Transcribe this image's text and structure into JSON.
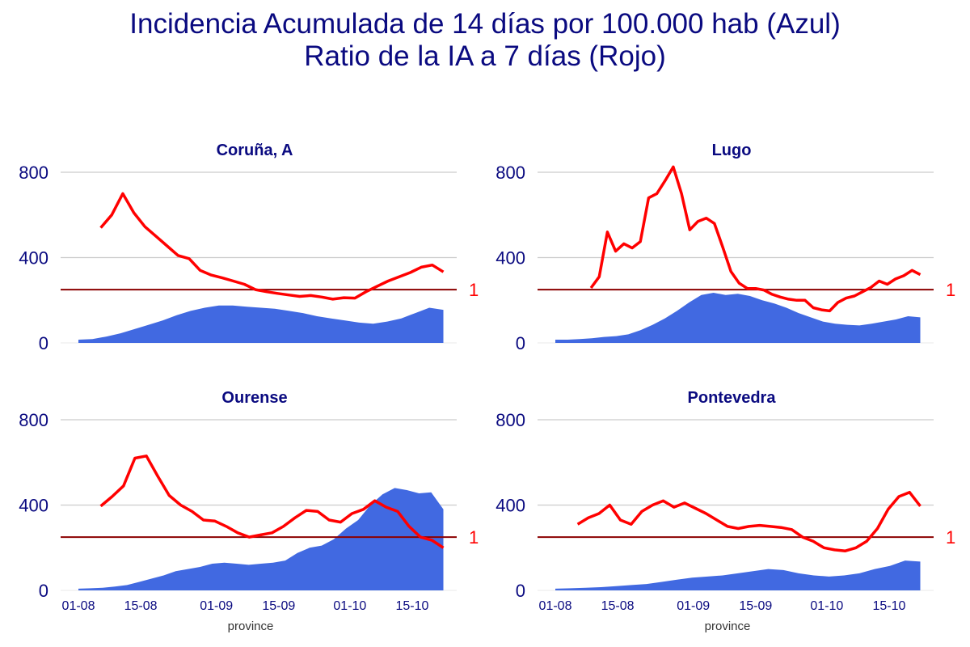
{
  "titles": {
    "line1": "Incidencia Acumulada de 14 días por 100.000 hab (Azul)",
    "line2": "Ratio de la IA a 7 días (Rojo)"
  },
  "colors": {
    "area": "#4169E1",
    "line": "#FF0000",
    "ref": "#8B0000",
    "grid": "#CCCCCC",
    "text": "#0A0A80"
  },
  "chart_data": [
    {
      "type": "area",
      "title": "Coruña, A",
      "xlabel": "",
      "ylim": [
        0,
        800
      ],
      "yticks": [
        0,
        400,
        800
      ],
      "xticks": [
        "01-08",
        "15-08",
        "01-09",
        "15-09",
        "01-10",
        "15-10"
      ],
      "ref_label": "1",
      "ref_value": 250,
      "x_range": [
        "2020-07-28",
        "2020-10-25"
      ],
      "ia14": {
        "x_start": "2020-08-01",
        "x_end": "2020-10-22",
        "values": [
          15,
          18,
          30,
          45,
          65,
          85,
          105,
          130,
          150,
          165,
          175,
          175,
          170,
          165,
          160,
          150,
          140,
          125,
          115,
          105,
          95,
          90,
          100,
          115,
          140,
          165,
          155
        ]
      },
      "ratio": {
        "x_start": "2020-08-06",
        "x_end": "2020-10-22",
        "values": [
          540,
          600,
          700,
          610,
          545,
          500,
          455,
          410,
          395,
          340,
          318,
          305,
          290,
          275,
          250,
          240,
          232,
          225,
          218,
          222,
          215,
          205,
          212,
          210,
          240,
          265,
          290,
          310,
          330,
          355,
          365,
          333
        ]
      }
    },
    {
      "type": "area",
      "title": "Lugo",
      "xlabel": "",
      "ylim": [
        0,
        800
      ],
      "yticks": [
        0,
        400,
        800
      ],
      "xticks": [
        "01-08",
        "15-08",
        "01-09",
        "15-09",
        "01-10",
        "15-10"
      ],
      "ref_label": "1",
      "ref_value": 250,
      "x_range": [
        "2020-07-28",
        "2020-10-25"
      ],
      "ia14": {
        "x_start": "2020-08-01",
        "x_end": "2020-10-22",
        "values": [
          15,
          15,
          18,
          22,
          28,
          32,
          40,
          60,
          85,
          115,
          150,
          190,
          225,
          235,
          225,
          230,
          220,
          200,
          185,
          165,
          140,
          120,
          100,
          90,
          85,
          82,
          90,
          100,
          110,
          125,
          120
        ]
      },
      "ratio": {
        "x_start": "2020-08-09",
        "x_end": "2020-10-22",
        "values": [
          258,
          310,
          520,
          430,
          465,
          445,
          475,
          680,
          700,
          760,
          825,
          700,
          530,
          570,
          585,
          560,
          450,
          335,
          280,
          255,
          255,
          248,
          228,
          215,
          205,
          200,
          200,
          165,
          155,
          150,
          190,
          210,
          220,
          240,
          260,
          290,
          275,
          300,
          315,
          340,
          320
        ]
      }
    },
    {
      "type": "area",
      "title": "Ourense",
      "xlabel": "province",
      "ylim": [
        0,
        800
      ],
      "yticks": [
        0,
        400,
        800
      ],
      "xticks": [
        "01-08",
        "15-08",
        "01-09",
        "15-09",
        "01-10",
        "15-10"
      ],
      "ref_label": "1",
      "ref_value": 250,
      "x_range": [
        "2020-07-28",
        "2020-10-25"
      ],
      "ia14": {
        "x_start": "2020-08-01",
        "x_end": "2020-10-22",
        "values": [
          8,
          10,
          12,
          18,
          25,
          40,
          55,
          70,
          90,
          100,
          110,
          125,
          130,
          125,
          120,
          125,
          130,
          140,
          175,
          200,
          210,
          240,
          290,
          330,
          400,
          450,
          480,
          470,
          455,
          460,
          380
        ]
      },
      "ratio": {
        "x_start": "2020-08-06",
        "x_end": "2020-10-22",
        "values": [
          395,
          440,
          490,
          620,
          630,
          535,
          445,
          400,
          370,
          330,
          325,
          300,
          270,
          250,
          260,
          270,
          300,
          340,
          375,
          370,
          330,
          320,
          360,
          380,
          420,
          390,
          370,
          300,
          250,
          235,
          200
        ]
      }
    },
    {
      "type": "area",
      "title": "Pontevedra",
      "xlabel": "province",
      "ylim": [
        0,
        800
      ],
      "yticks": [
        0,
        400,
        800
      ],
      "xticks": [
        "01-08",
        "15-08",
        "01-09",
        "15-09",
        "01-10",
        "15-10"
      ],
      "ref_label": "1",
      "ref_value": 250,
      "x_range": [
        "2020-07-28",
        "2020-10-25"
      ],
      "ia14": {
        "x_start": "2020-08-01",
        "x_end": "2020-10-22",
        "values": [
          8,
          10,
          12,
          15,
          20,
          25,
          30,
          40,
          50,
          60,
          65,
          70,
          80,
          90,
          100,
          95,
          80,
          70,
          65,
          70,
          80,
          100,
          115,
          140,
          135
        ]
      },
      "ratio": {
        "x_start": "2020-08-06",
        "x_end": "2020-10-22",
        "values": [
          310,
          340,
          360,
          400,
          330,
          310,
          370,
          400,
          420,
          390,
          410,
          385,
          360,
          330,
          300,
          290,
          300,
          305,
          300,
          295,
          285,
          250,
          230,
          200,
          190,
          185,
          200,
          230,
          290,
          380,
          440,
          460,
          395
        ]
      }
    }
  ]
}
